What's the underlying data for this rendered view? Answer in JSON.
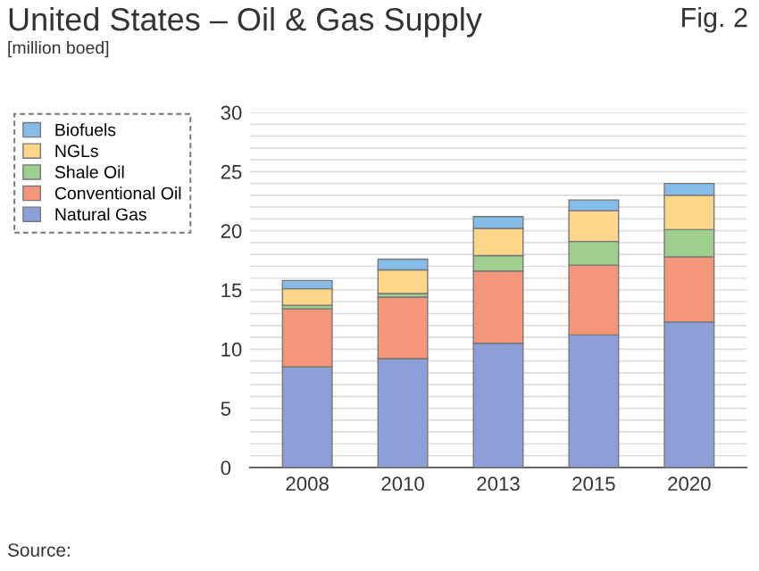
{
  "chart_data": {
    "type": "bar",
    "title": "United States – Oil & Gas Supply",
    "subtitle": "[million boed]",
    "annotations": [
      "Fig. 2",
      "Source:"
    ],
    "categories": [
      "2008",
      "2010",
      "2013",
      "2015",
      "2020"
    ],
    "stacked": true,
    "series": [
      {
        "name": "Natural Gas",
        "color": "#8c9fd6",
        "values": [
          8.5,
          9.2,
          10.5,
          11.2,
          12.3
        ]
      },
      {
        "name": "Conventional Oil",
        "color": "#f4967a",
        "values": [
          4.9,
          5.2,
          6.1,
          5.9,
          5.5
        ]
      },
      {
        "name": "Shale Oil",
        "color": "#9fcf8e",
        "values": [
          0.3,
          0.3,
          1.3,
          2.0,
          2.3
        ]
      },
      {
        "name": "NGLs",
        "color": "#fdd68a",
        "values": [
          1.4,
          2.0,
          2.3,
          2.6,
          2.9
        ]
      },
      {
        "name": "Biofuels",
        "color": "#85bde8",
        "values": [
          0.7,
          0.9,
          1.0,
          0.9,
          1.0
        ]
      }
    ],
    "ylim": [
      0,
      30
    ],
    "yticks": [
      0,
      {
        "value": 1,
        "label": null
      },
      {
        "value": 2,
        "label": null
      },
      {
        "value": 3,
        "label": null
      },
      {
        "value": 4,
        "label": null
      },
      5,
      {
        "value": 6,
        "label": null
      },
      {
        "value": 7,
        "label": null
      },
      {
        "value": 8,
        "label": null
      },
      {
        "value": 9,
        "label": null
      },
      10,
      {
        "value": 11,
        "label": null
      },
      {
        "value": 12,
        "label": null
      },
      {
        "value": 13,
        "label": null
      },
      {
        "value": 14,
        "label": null
      },
      15,
      {
        "value": 16,
        "label": null
      },
      {
        "value": 17,
        "label": null
      },
      {
        "value": 18,
        "label": null
      },
      {
        "value": 19,
        "label": null
      },
      20,
      {
        "value": 21,
        "label": null
      },
      {
        "value": 22,
        "label": null
      },
      {
        "value": 23,
        "label": null
      },
      {
        "value": 24,
        "label": null
      },
      25,
      {
        "value": 26,
        "label": null
      },
      {
        "value": 27,
        "label": null
      },
      {
        "value": 28,
        "label": null
      },
      {
        "value": 29,
        "label": null
      },
      30
    ],
    "grid": "y",
    "legend": "left"
  }
}
